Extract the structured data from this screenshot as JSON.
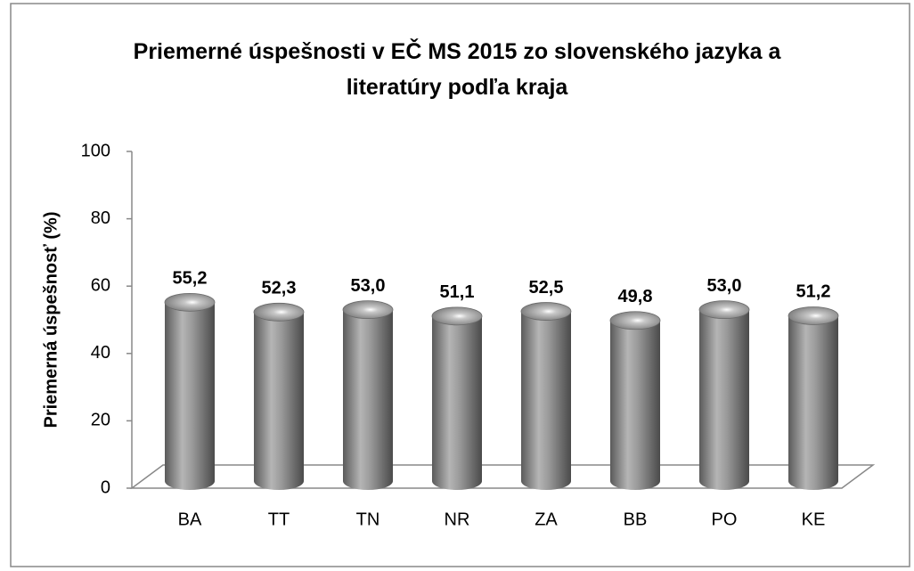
{
  "chart_data": {
    "type": "bar",
    "title": "Priemerné úspešnosti v EČ MS 2015 zo slovenského jazyka a literatúry podľa kraja",
    "y_label": "Priemerná úspešnosť (%)",
    "categories": [
      "BA",
      "TT",
      "TN",
      "NR",
      "ZA",
      "BB",
      "PO",
      "KE"
    ],
    "values": [
      55.2,
      52.3,
      53.0,
      51.1,
      52.5,
      49.8,
      53.0,
      51.2
    ],
    "value_labels": [
      "55,2",
      "52,3",
      "53,0",
      "51,1",
      "52,5",
      "49,8",
      "53,0",
      "51,2"
    ],
    "color": "#8c8c8c",
    "ylim": [
      0,
      100
    ],
    "yticks": [
      0,
      20,
      40,
      60,
      80,
      100
    ],
    "grid": false
  }
}
